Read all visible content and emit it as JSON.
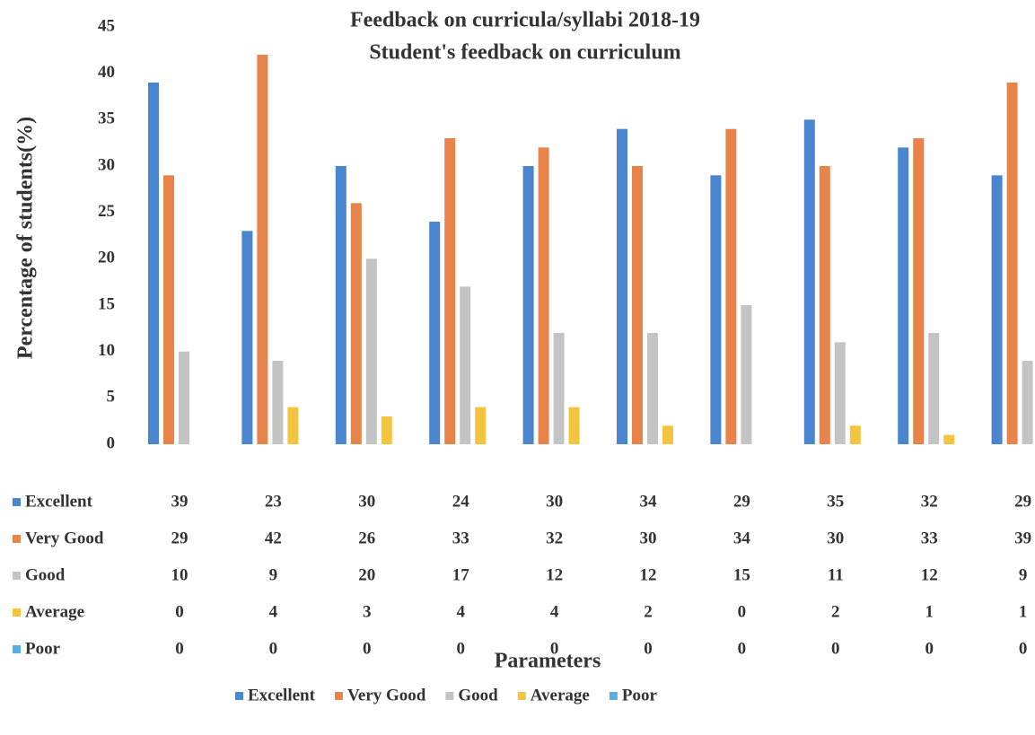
{
  "chart_data": {
    "type": "bar",
    "title": "Feedback on curricula/syllabi 2018-19",
    "subtitle": "Student's feedback on curriculum",
    "y_label": "Percentage of students(%)",
    "x_label": "Parameters",
    "categories": [
      null,
      null,
      null,
      null,
      null,
      null,
      null,
      null,
      null,
      null
    ],
    "series": [
      {
        "name": "Excellent",
        "color": "#4a86d0",
        "values": [
          39,
          23,
          30,
          24,
          30,
          34,
          29,
          35,
          32,
          29
        ]
      },
      {
        "name": "Very Good",
        "color": "#e8834a",
        "values": [
          29,
          42,
          26,
          33,
          32,
          30,
          34,
          30,
          33,
          39
        ]
      },
      {
        "name": "Good",
        "color": "#c4c4c4",
        "values": [
          10,
          9,
          20,
          17,
          12,
          12,
          15,
          11,
          12,
          9
        ]
      },
      {
        "name": "Average",
        "color": "#f3c53e",
        "values": [
          0,
          4,
          3,
          4,
          4,
          2,
          0,
          2,
          1,
          1
        ]
      },
      {
        "name": "Poor",
        "color": "#5aaee0",
        "values": [
          0,
          0,
          0,
          0,
          0,
          0,
          0,
          0,
          0,
          0
        ]
      }
    ],
    "ylim": [
      0,
      45
    ],
    "yticks": [
      0,
      5,
      10,
      15,
      20,
      25,
      30,
      35,
      40,
      45
    ],
    "legend": "bottom"
  }
}
